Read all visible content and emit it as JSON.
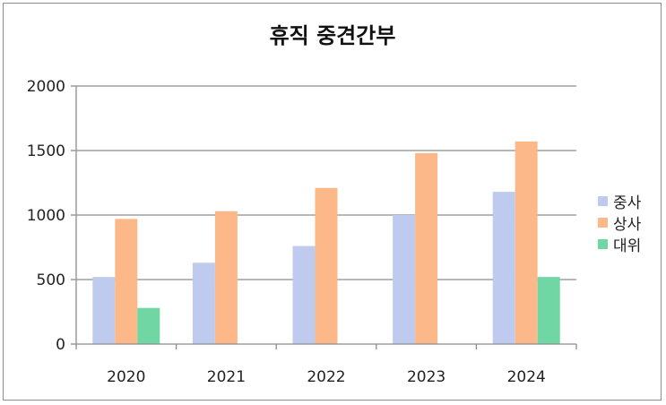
{
  "chart_data": {
    "type": "bar",
    "title": "휴직 중견간부",
    "xlabel": "",
    "ylabel": "",
    "categories": [
      "2020",
      "2021",
      "2022",
      "2023",
      "2024"
    ],
    "ylim": [
      0,
      2000
    ],
    "yticks": [
      0,
      500,
      1000,
      1500,
      2000
    ],
    "grid": true,
    "legend_position": "right",
    "series": [
      {
        "name": "중사",
        "color": "#bfcbee",
        "values": [
          520,
          630,
          760,
          1000,
          1180
        ]
      },
      {
        "name": "상사",
        "color": "#fdb88a",
        "values": [
          970,
          1030,
          1210,
          1480,
          1570
        ]
      },
      {
        "name": "대위",
        "color": "#6fd6a4",
        "values": [
          280,
          null,
          null,
          null,
          520
        ]
      }
    ]
  }
}
